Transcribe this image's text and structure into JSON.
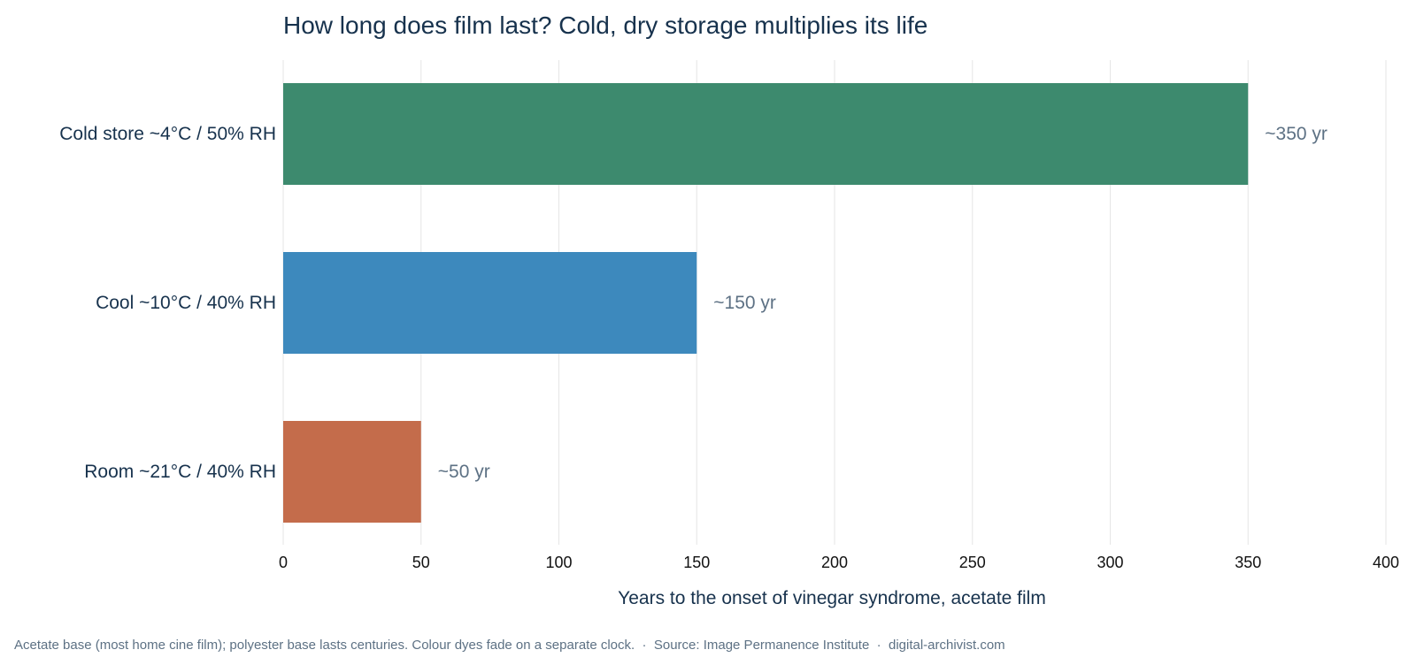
{
  "chart_data": {
    "type": "bar",
    "orientation": "horizontal",
    "title": "How long does film last? Cold, dry storage multiplies its life",
    "categories": [
      "Cold store ~4°C / 50% RH",
      "Cool ~10°C / 40% RH",
      "Room ~21°C / 40% RH"
    ],
    "values": [
      350,
      150,
      50
    ],
    "value_labels": [
      "~350 yr",
      "~150 yr",
      "~50 yr"
    ],
    "colors": [
      "#3d8a6e",
      "#3d89bd",
      "#c46c4b"
    ],
    "xlabel": "Years to the onset of vinegar syndrome, acetate film",
    "ylabel": "",
    "xlim": [
      0,
      400
    ],
    "xticks": [
      0,
      50,
      100,
      150,
      200,
      250,
      300,
      350,
      400
    ],
    "tick_labels": [
      "0",
      "50",
      "100",
      "150",
      "200",
      "250",
      "300",
      "350",
      "400"
    ],
    "grid": "vertical",
    "legend": "none"
  },
  "footnote": "Acetate base (most home cine film); polyester base lasts centuries. Colour dyes fade on a separate clock.  ·  Source: Image Permanence Institute  ·  digital-archivist.com"
}
